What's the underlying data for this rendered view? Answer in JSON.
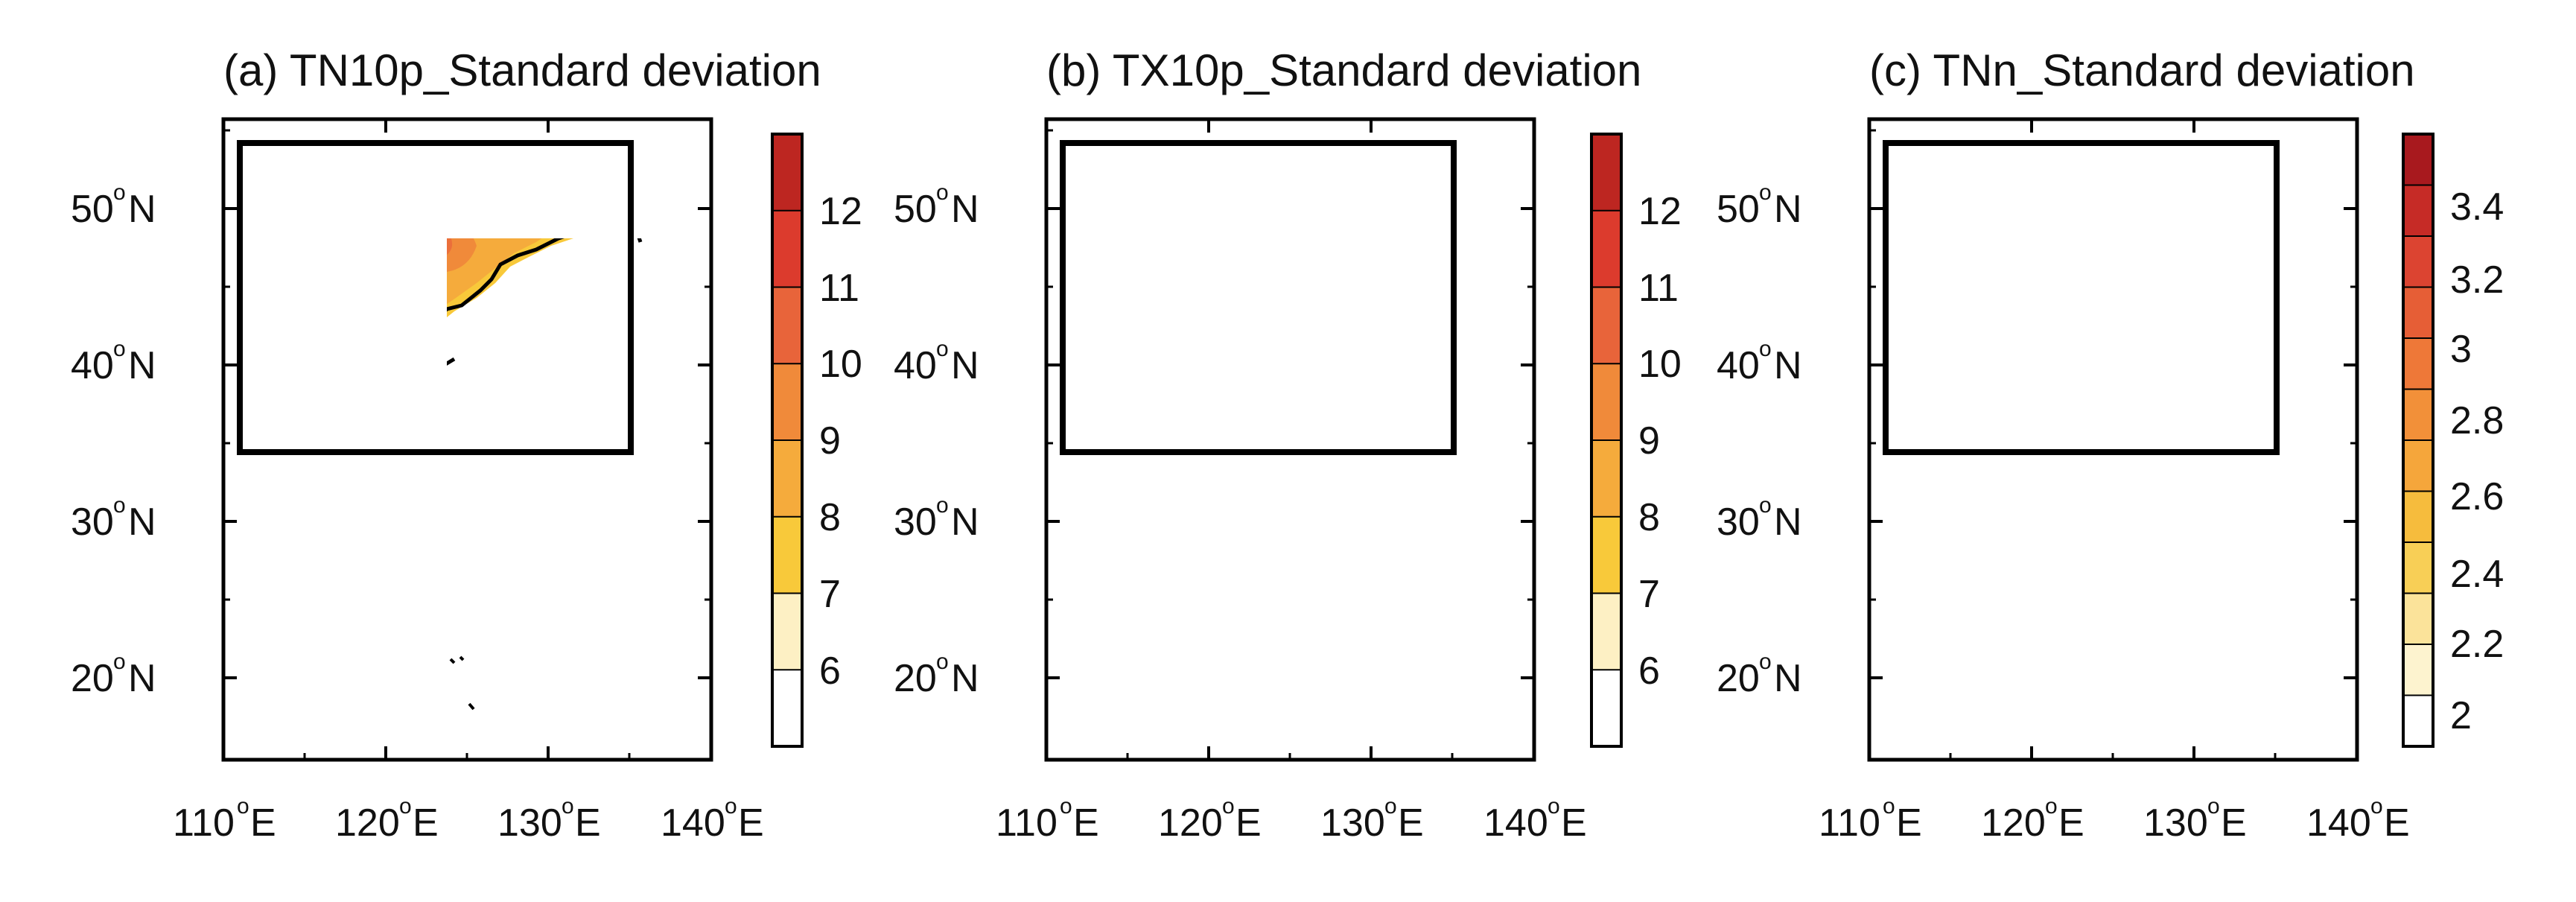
{
  "figure": {
    "panels": [
      {
        "id": "a",
        "title": "(a) TN10p_Standard deviation",
        "lat_labels": [
          "50",
          "40",
          "30",
          "20"
        ],
        "lon_labels": [
          "110",
          "120",
          "130",
          "140"
        ],
        "colorbar_labels": [
          "12",
          "11",
          "10",
          "9",
          "8",
          "7",
          "6"
        ],
        "colorbar_colors": [
          "#ffffff",
          "#fdf0c4",
          "#f8c93a",
          "#f5ab3c",
          "#f08a3a",
          "#e8643a",
          "#dc3b2d",
          "#bd2621"
        ]
      },
      {
        "id": "b",
        "title": "(b) TX10p_Standard deviation",
        "lat_labels": [
          "50",
          "40",
          "30",
          "20"
        ],
        "lon_labels": [
          "110",
          "120",
          "130",
          "140"
        ],
        "colorbar_labels": [
          "12",
          "11",
          "10",
          "9",
          "8",
          "7",
          "6"
        ],
        "colorbar_colors": [
          "#ffffff",
          "#fdf0c4",
          "#f8c93a",
          "#f5ab3c",
          "#f08a3a",
          "#e8643a",
          "#dc3b2d",
          "#bd2621"
        ]
      },
      {
        "id": "c",
        "title": "(c) TNn_Standard deviation",
        "lat_labels": [
          "50",
          "40",
          "30",
          "20"
        ],
        "lon_labels": [
          "110",
          "120",
          "130",
          "140"
        ],
        "colorbar_labels": [
          "3.4",
          "3.2",
          "3",
          "2.8",
          "2.6",
          "2.4",
          "2.2",
          "2"
        ],
        "colorbar_colors": [
          "#ffffff",
          "#fdf3cf",
          "#fbe39a",
          "#f8cf56",
          "#f6bc3d",
          "#f5a63b",
          "#f29039",
          "#ee7838",
          "#e65e36",
          "#dc4431",
          "#c62b26",
          "#a8191e"
        ]
      }
    ],
    "lat_suffix": "N",
    "lon_suffix": "E",
    "degree_symbol": "o"
  }
}
